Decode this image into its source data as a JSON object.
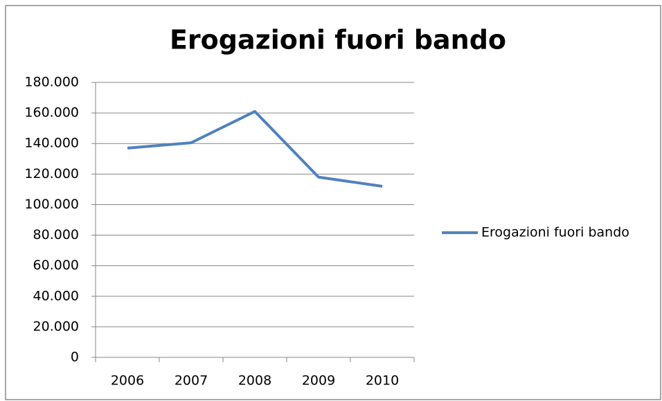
{
  "chart_data": {
    "type": "line",
    "title": "Erogazioni fuori bando",
    "categories": [
      "2006",
      "2007",
      "2008",
      "2009",
      "2010"
    ],
    "series": [
      {
        "name": "Erogazioni fuori bando",
        "color": "#4f81bd",
        "values": [
          137000,
          140500,
          161000,
          118000,
          112000
        ]
      }
    ],
    "ylim": [
      0,
      180000
    ],
    "yticks": [
      0,
      {
        "value": 20000,
        "label": "20.000"
      },
      {
        "value": 40000,
        "label": "40.000"
      },
      {
        "value": 60000,
        "label": "60.000"
      },
      {
        "value": 80000,
        "label": "80.000"
      },
      {
        "value": 100000,
        "label": "100.000"
      },
      {
        "value": 120000,
        "label": "120.000"
      },
      {
        "value": 140000,
        "label": "140.000"
      },
      {
        "value": 160000,
        "label": "160.000"
      },
      {
        "value": 180000,
        "label": "180.000"
      }
    ],
    "grid": true,
    "legend": "right"
  }
}
